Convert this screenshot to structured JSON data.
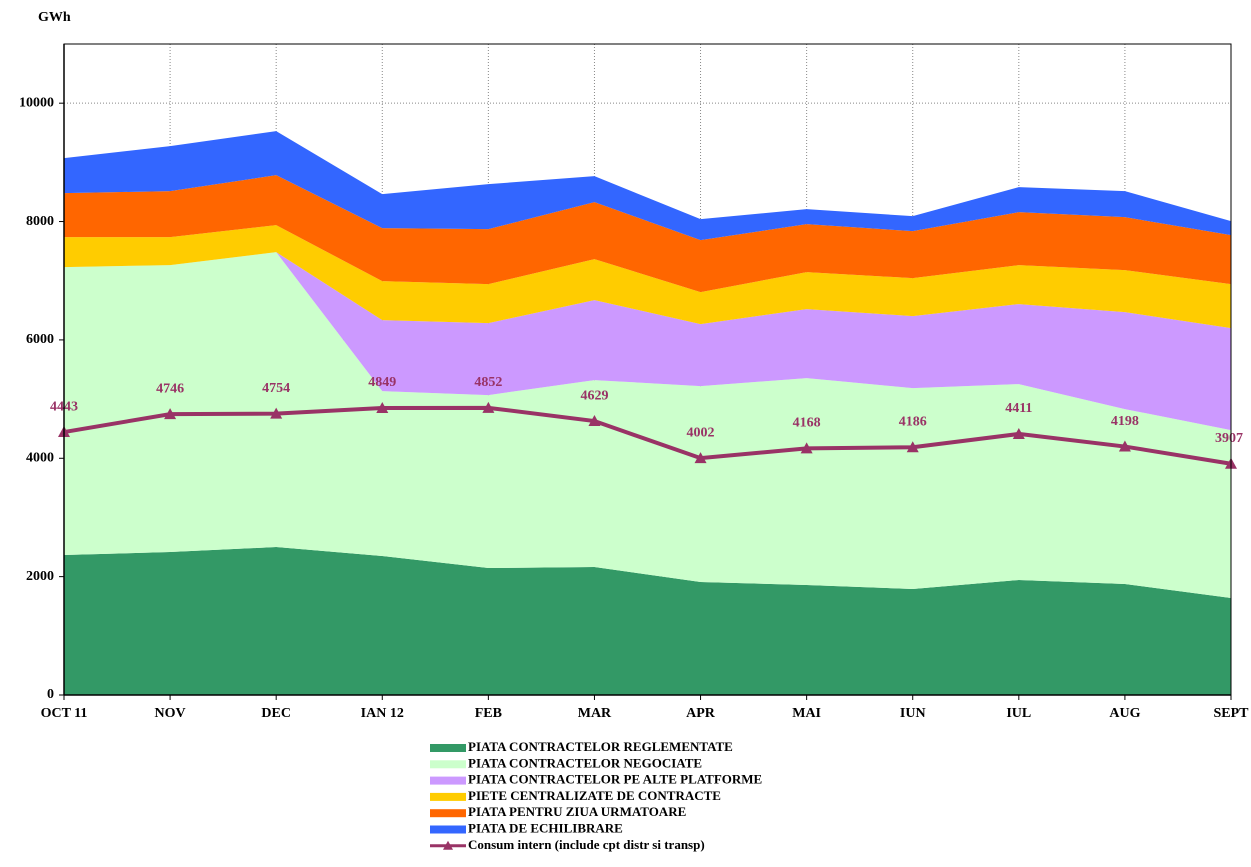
{
  "chart_data": {
    "type": "area",
    "stacked": true,
    "y_label": "GWh",
    "categories": [
      "OCT 11",
      "NOV",
      "DEC",
      "IAN 12",
      "FEB",
      "MAR",
      "APR",
      "MAI",
      "IUN",
      "IUL",
      "AUG",
      "SEPT"
    ],
    "series": [
      {
        "name": "PIATA CONTRACTELOR REGLEMENTATE",
        "color": "#339966",
        "values": [
          2365,
          2416,
          2500,
          2348,
          2145,
          2162,
          1909,
          1858,
          1791,
          1943,
          1875,
          1639
        ]
      },
      {
        "name": "PIATA CONTRACTELOR NEGOCIATE",
        "color": "#CCFFCC",
        "values": [
          4865,
          4848,
          4983,
          2787,
          2923,
          3159,
          3311,
          3497,
          3395,
          3310,
          2956,
          2837
        ]
      },
      {
        "name": "PIATA CONTRACTELOR PE ALTE PLATFORME",
        "color": "#CC99FF",
        "values": [
          0,
          0,
          0,
          1199,
          1216,
          1351,
          1047,
          1165,
          1216,
          1352,
          1639,
          1723
        ]
      },
      {
        "name": "PIETE CENTRALIZATE DE CONTRACTE",
        "color": "#FFCC00",
        "values": [
          506,
          472,
          456,
          659,
          659,
          693,
          540,
          625,
          642,
          659,
          709,
          744
        ]
      },
      {
        "name": "PIATA PENTRU ZIUA URMATOARE",
        "color": "#FF6600",
        "values": [
          744,
          778,
          845,
          896,
          929,
          963,
          879,
          811,
          794,
          895,
          895,
          827
        ]
      },
      {
        "name": "PIATA DE ECHILIBRARE",
        "color": "#3366FF",
        "values": [
          591,
          760,
          743,
          574,
          760,
          439,
          355,
          253,
          253,
          422,
          440,
          237
        ]
      },
      {
        "name": "Consum intern (include cpt distr si transp)",
        "color": "#993366",
        "type": "line",
        "values": [
          4443,
          4746,
          4754,
          4849,
          4852,
          4629,
          4002,
          4168,
          4186,
          4411,
          4198,
          3907
        ]
      }
    ],
    "ylim": [
      0,
      11000
    ],
    "yticks": [
      0,
      2000,
      4000,
      6000,
      8000,
      10000
    ],
    "grid": true
  }
}
